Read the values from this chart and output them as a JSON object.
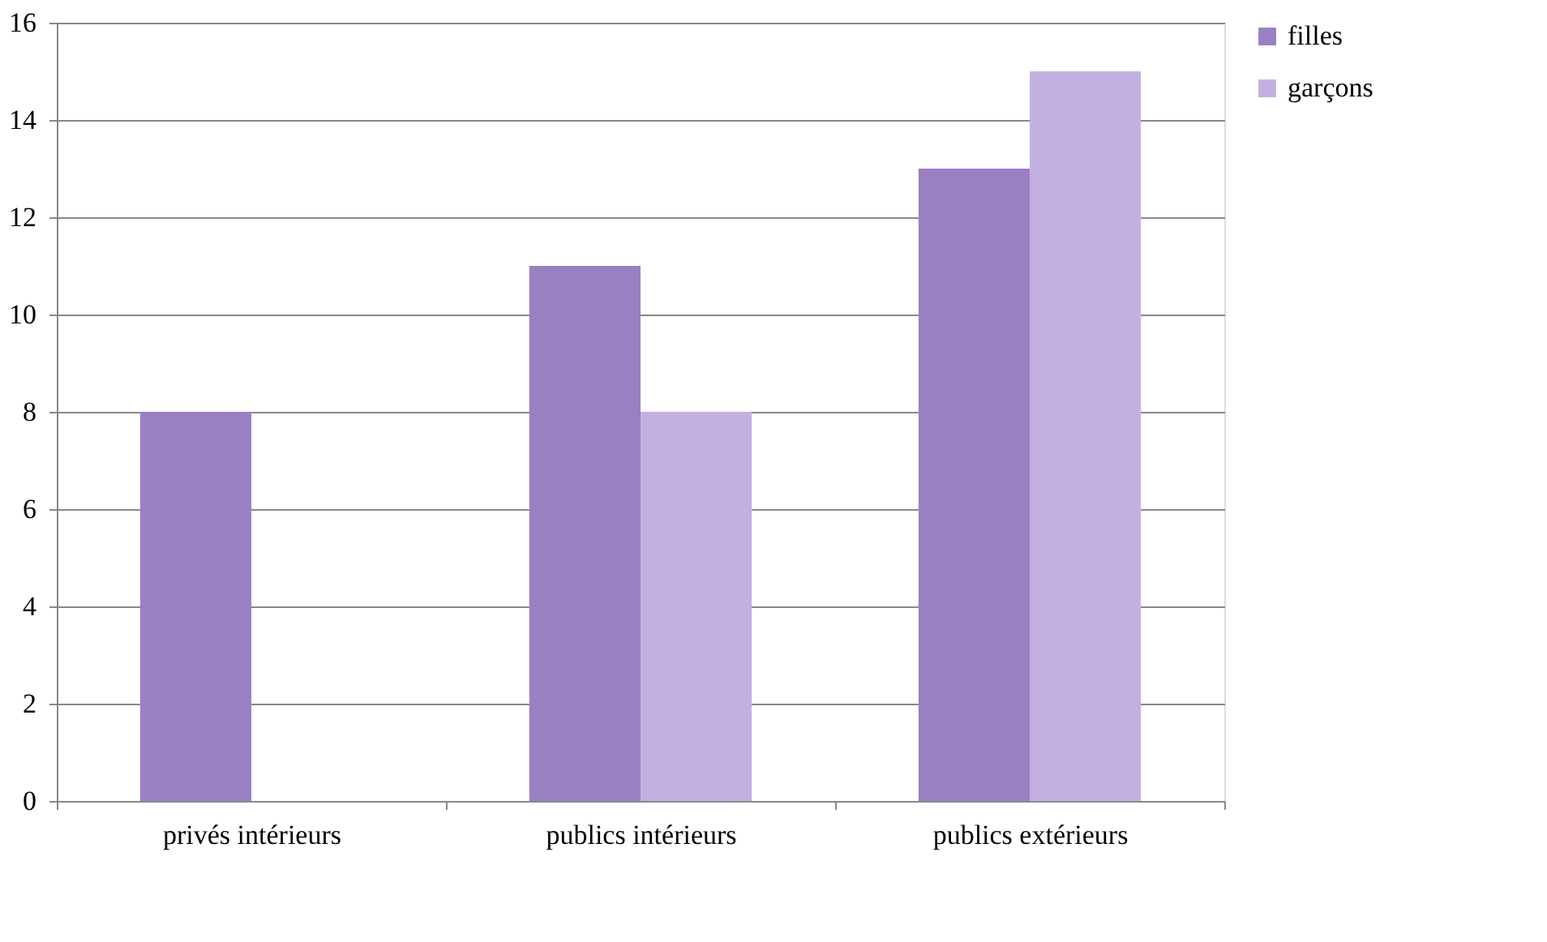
{
  "chart_data": {
    "type": "bar",
    "categories": [
      "privés intérieurs",
      "publics intérieurs",
      "publics extérieurs"
    ],
    "series": [
      {
        "name": "filles",
        "color": "#9a80c2",
        "values": [
          8,
          11,
          13
        ]
      },
      {
        "name": "garçons",
        "color": "#c2b1e0",
        "values": [
          null,
          8,
          15
        ]
      }
    ],
    "ylim": [
      0,
      16
    ],
    "yticks": [
      0,
      2,
      4,
      6,
      8,
      10,
      12,
      14,
      16
    ],
    "grid": "y",
    "legend": "right"
  }
}
